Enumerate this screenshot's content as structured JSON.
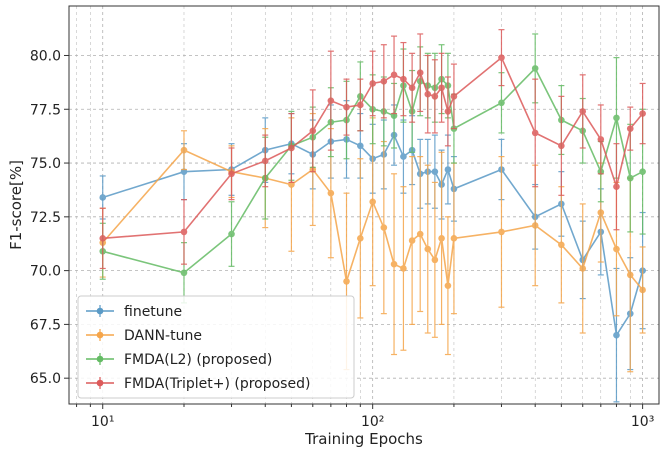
{
  "chart_data": {
    "type": "line",
    "title": "",
    "xlabel": "Training Epochs",
    "ylabel": "F1-score[%]",
    "xscale": "log",
    "xlim": [
      7.5,
      1150
    ],
    "ylim": [
      63.8,
      82.3
    ],
    "x_ticks": [
      {
        "value": 10,
        "label": "10¹"
      },
      {
        "value": 100,
        "label": "10²"
      },
      {
        "value": 1000,
        "label": "10³"
      }
    ],
    "y_ticks": [
      65.0,
      67.5,
      70.0,
      72.5,
      75.0,
      77.5,
      80.0
    ],
    "y_tick_labels": [
      "65.0",
      "67.5",
      "70.0",
      "72.5",
      "75.0",
      "77.5",
      "80.0"
    ],
    "grid": true,
    "legend_position": "lower-left",
    "series": [
      {
        "name": "finetune",
        "color": "#5a9ac6",
        "x": [
          10,
          20,
          30,
          40,
          50,
          60,
          70,
          80,
          90,
          100,
          110,
          120,
          130,
          140,
          150,
          160,
          170,
          180,
          190,
          200,
          300,
          400,
          500,
          600,
          700,
          800,
          900,
          1000
        ],
        "y": [
          73.4,
          74.6,
          74.7,
          75.6,
          75.9,
          75.4,
          76.0,
          76.1,
          75.8,
          75.2,
          75.4,
          76.3,
          75.3,
          75.6,
          74.5,
          74.6,
          74.6,
          74.0,
          74.7,
          73.8,
          74.7,
          72.5,
          73.1,
          70.5,
          71.8,
          67.0,
          68.0,
          70.0
        ],
        "err": [
          1.0,
          1.3,
          1.2,
          1.5,
          1.4,
          1.6,
          1.7,
          1.8,
          1.5,
          1.6,
          1.6,
          1.4,
          1.7,
          1.6,
          1.6,
          1.5,
          1.7,
          1.6,
          1.6,
          1.5,
          1.4,
          1.5,
          1.5,
          1.8,
          2.0,
          3.1,
          2.6,
          2.7
        ]
      },
      {
        "name": "DANN-tune",
        "color": "#f5a54a",
        "x": [
          10,
          20,
          30,
          40,
          50,
          60,
          70,
          80,
          90,
          100,
          110,
          120,
          130,
          140,
          150,
          160,
          170,
          180,
          190,
          200,
          300,
          400,
          500,
          600,
          700,
          800,
          900,
          1000
        ],
        "y": [
          71.3,
          75.6,
          74.6,
          74.3,
          74.0,
          74.7,
          73.6,
          69.5,
          71.5,
          73.2,
          72.0,
          70.3,
          70.1,
          71.4,
          71.7,
          71.0,
          70.5,
          71.5,
          69.3,
          71.5,
          71.8,
          72.1,
          71.2,
          70.1,
          72.7,
          71.0,
          69.8,
          69.1
        ],
        "err": [
          1.6,
          0.9,
          1.2,
          2.3,
          3.1,
          2.6,
          3.0,
          4.1,
          3.7,
          3.9,
          4.0,
          4.2,
          3.8,
          3.9,
          3.6,
          3.9,
          3.6,
          4.0,
          3.2,
          3.5,
          3.5,
          2.8,
          2.7,
          3.0,
          2.3,
          3.1,
          4.5,
          2.0
        ]
      },
      {
        "name": "FMDA(L2) (proposed)",
        "color": "#64bb64",
        "x": [
          10,
          20,
          30,
          40,
          50,
          60,
          70,
          80,
          90,
          100,
          110,
          120,
          130,
          140,
          150,
          160,
          170,
          180,
          190,
          200,
          300,
          400,
          500,
          600,
          700,
          800,
          900,
          1000
        ],
        "y": [
          70.9,
          69.9,
          71.7,
          74.3,
          75.8,
          76.2,
          76.9,
          77.0,
          78.1,
          77.5,
          77.4,
          77.2,
          78.6,
          77.4,
          78.8,
          78.6,
          78.5,
          78.9,
          78.6,
          76.6,
          77.8,
          79.4,
          77.0,
          76.5,
          74.6,
          77.1,
          74.3,
          74.6
        ],
        "err": [
          1.3,
          1.4,
          1.5,
          1.9,
          1.6,
          1.4,
          1.6,
          1.8,
          1.6,
          1.6,
          1.6,
          1.5,
          1.7,
          1.9,
          1.6,
          1.5,
          1.6,
          1.6,
          1.5,
          1.6,
          1.4,
          1.6,
          1.6,
          1.5,
          1.4,
          2.8,
          2.5,
          2.9
        ]
      },
      {
        "name": "FMDA(Triplet+) (proposed)",
        "color": "#dc5a5a",
        "x": [
          10,
          20,
          30,
          40,
          50,
          60,
          70,
          80,
          90,
          100,
          110,
          120,
          130,
          140,
          150,
          160,
          170,
          180,
          190,
          200,
          300,
          400,
          500,
          600,
          700,
          800,
          900,
          1000
        ],
        "y": [
          71.5,
          71.8,
          74.5,
          75.1,
          75.7,
          76.5,
          77.9,
          77.6,
          77.7,
          78.7,
          78.8,
          79.1,
          78.9,
          78.5,
          79.2,
          78.2,
          78.1,
          78.5,
          77.4,
          78.1,
          79.9,
          76.4,
          75.8,
          77.4,
          76.1,
          73.9,
          76.6,
          77.3
        ],
        "err": [
          1.4,
          1.5,
          1.2,
          1.2,
          1.6,
          1.9,
          2.3,
          1.3,
          1.2,
          1.5,
          1.7,
          1.8,
          1.7,
          1.6,
          1.8,
          1.8,
          1.7,
          1.6,
          1.6,
          1.5,
          1.3,
          2.5,
          2.3,
          1.7,
          1.6,
          2.0,
          1.0,
          1.4
        ]
      }
    ]
  }
}
